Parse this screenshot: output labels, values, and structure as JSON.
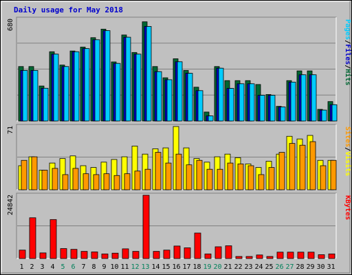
{
  "chart_data": {
    "type": "bar",
    "title": "Daily usage for May 2018",
    "days": [
      "1",
      "2",
      "3",
      "4",
      "5",
      "6",
      "7",
      "8",
      "9",
      "10",
      "11",
      "12",
      "13",
      "14",
      "15",
      "16",
      "17",
      "18",
      "19",
      "20",
      "21",
      "22",
      "23",
      "24",
      "25",
      "26",
      "27",
      "28",
      "29",
      "30",
      "31"
    ],
    "weekend_days": [
      "5",
      "6",
      "12",
      "13",
      "19",
      "20",
      "26",
      "27"
    ],
    "panels": [
      {
        "id": "pages-files-hits",
        "ymax": 680,
        "ymax_label": "680",
        "axis_label_parts": [
          "Pages",
          "/",
          "Files",
          "/",
          "Hits"
        ],
        "axis_label_colors": [
          "#00ccff",
          "#000000",
          "#0000cc",
          "#000000",
          "#006633"
        ],
        "series": [
          {
            "name": "Hits",
            "color": "#006633",
            "values": [
              364,
              364,
              234,
              463,
              374,
              468,
              494,
              557,
              614,
              395,
              575,
              458,
              663,
              364,
              289,
              416,
              338,
              226,
              60,
              364,
              270,
              270,
              270,
              244,
              177,
              98,
              270,
              335,
              335,
              78,
              130
            ]
          },
          {
            "name": "Files",
            "color": "#0000cc",
            "values": [
              338,
              338,
              219,
              447,
              364,
              463,
              484,
              543,
              604,
              385,
              560,
              447,
              632,
              330,
              276,
              396,
              319,
              203,
              34,
              353,
              218,
              249,
              249,
              172,
              172,
              94,
              260,
              309,
              309,
              73,
              109
            ]
          },
          {
            "name": "Pages",
            "color": "#00ccff",
            "values": [
              338,
              338,
              219,
              447,
              364,
              463,
              484,
              543,
              604,
              385,
              560,
              447,
              632,
              330,
              276,
              396,
              319,
              203,
              34,
              353,
              218,
              249,
              249,
              172,
              172,
              94,
              260,
              309,
              309,
              73,
              109
            ]
          }
        ]
      },
      {
        "id": "visits-sites",
        "ymax": 71,
        "ymax_label": "71",
        "axis_label_parts": [
          "Sites",
          "/",
          "Visits"
        ],
        "axis_label_colors": [
          "#ff9900",
          "#000000",
          "#ffff00"
        ],
        "series": [
          {
            "name": "Visits",
            "color": "#ffff00",
            "values": [
              27,
              37,
              22,
              30,
              35,
              38,
              27,
              25,
              31,
              34,
              37,
              49,
              40,
              46,
              47,
              71,
              47,
              35,
              31,
              37,
              40,
              36,
              29,
              25,
              32,
              40,
              60,
              57,
              61,
              33,
              33
            ]
          },
          {
            "name": "Sites",
            "color": "#ff9900",
            "values": [
              33,
              37,
              22,
              24,
              17,
              24,
              18,
              17,
              18,
              16,
              18,
              21,
              23,
              42,
              30,
              40,
              28,
              33,
              23,
              23,
              30,
              29,
              27,
              17,
              25,
              42,
              52,
              50,
              54,
              27,
              33
            ]
          }
        ]
      },
      {
        "id": "kbytes",
        "ymax": 24842,
        "ymax_label": "24842",
        "axis_label_parts": [
          "KBytes"
        ],
        "axis_label_colors": [
          "#ff0000"
        ],
        "series": [
          {
            "name": "KBytes",
            "color": "#ff0000",
            "values": [
              3300,
              16000,
              2200,
              15300,
              3900,
              3600,
              2800,
              2600,
              1800,
              2100,
              3800,
              2800,
              24842,
              2800,
              3300,
              4900,
              4200,
              10000,
              1800,
              4600,
              5000,
              800,
              800,
              1400,
              800,
              2500,
              2500,
              2500,
              2500,
              1500,
              1800
            ]
          }
        ]
      }
    ]
  }
}
